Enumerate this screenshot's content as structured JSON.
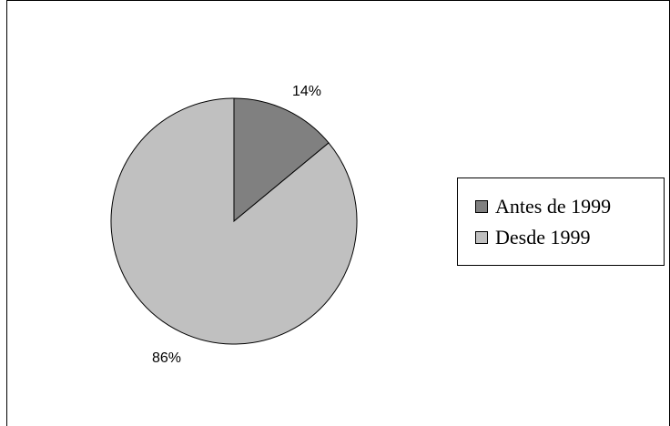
{
  "chart_data": {
    "type": "pie",
    "categories": [
      "Antes de 1999",
      "Desde 1999"
    ],
    "values": [
      14,
      86
    ],
    "data_labels": [
      "14%",
      "86%"
    ],
    "colors": [
      "#808080",
      "#c0c0c0"
    ],
    "legend": {
      "position": "right",
      "entries": [
        "Antes de 1999",
        "Desde 1999"
      ]
    },
    "title": ""
  }
}
